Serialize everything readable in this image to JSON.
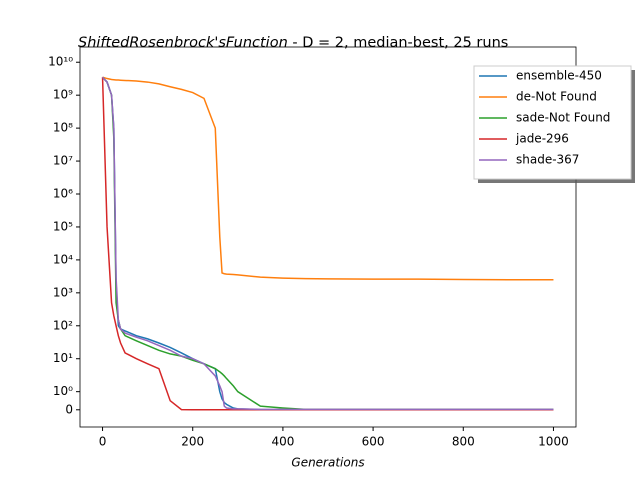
{
  "chart_data": {
    "type": "line",
    "title_math": "ShiftedRosenbrock'sFunction",
    "title": " - D = 2, median-best, 25 runs",
    "x_label": "Generations",
    "y_scale": "symlog",
    "x": [
      0,
      10,
      20,
      25,
      30,
      35,
      40,
      50,
      75,
      100,
      125,
      150,
      175,
      200,
      225,
      250,
      260,
      265,
      270,
      275,
      290,
      300,
      350,
      400,
      450,
      500,
      600,
      700,
      800,
      900,
      1000
    ],
    "series": [
      {
        "name": "ensemble-450",
        "color": "#1f77b4",
        "values": [
          3500000000,
          2500000000,
          1000000000,
          100000000,
          2000,
          100,
          80,
          70,
          50,
          40,
          30,
          22,
          15,
          10,
          7,
          5,
          1,
          0.6,
          0.4,
          0.3,
          0.1,
          0.05,
          0.01,
          0.005,
          0.002,
          0,
          0,
          0,
          0,
          0,
          0
        ]
      },
      {
        "name": "de-Not Found",
        "color": "#ff7f0e",
        "values": [
          3500000000,
          3200000000,
          3000000000,
          2950000000,
          2900000000,
          2880000000,
          2850000000,
          2800000000,
          2700000000,
          2500000000,
          2200000000,
          1800000000,
          1500000000,
          1200000000,
          800000000,
          100000000,
          50000,
          4000,
          3800,
          3700,
          3600,
          3500,
          3000,
          2800,
          2700,
          2650,
          2600,
          2600,
          2550,
          2500,
          2500
        ]
      },
      {
        "name": "sade-Not Found",
        "color": "#2ca02c",
        "values": [
          3500000000,
          2500000000,
          1000000000,
          50000000,
          500,
          150,
          80,
          50,
          35,
          25,
          18,
          14,
          12,
          9,
          7,
          5,
          4,
          3.5,
          3,
          2.5,
          1.5,
          1,
          0.2,
          0.1,
          0.02,
          0.02,
          0.02,
          0.02,
          0.02,
          0.02,
          0.02
        ]
      },
      {
        "name": "jade-296",
        "color": "#d62728",
        "values": [
          3500000000,
          100000,
          500,
          200,
          100,
          50,
          30,
          15,
          10,
          7,
          5,
          0.5,
          0.01,
          0,
          0,
          0,
          0,
          0,
          0,
          0,
          0,
          0,
          0,
          0,
          0,
          0,
          0,
          0,
          0,
          0,
          0
        ]
      },
      {
        "name": "shade-367",
        "color": "#9467bd",
        "values": [
          3500000000,
          2500000000,
          1000000000,
          100000000,
          3000,
          150,
          80,
          60,
          45,
          35,
          25,
          18,
          12,
          10,
          7,
          3,
          1.5,
          1,
          0.2,
          0.1,
          0.05,
          0.05,
          0.02,
          0.02,
          0.02,
          0.02,
          0.02,
          0.02,
          0.02,
          0.02,
          0.02
        ]
      }
    ],
    "xlim": [
      -50,
      1050
    ],
    "xticks": [
      0,
      200,
      400,
      600,
      800,
      1000
    ],
    "ylim": [
      -0.95,
      29000000000
    ],
    "yticks": [
      0,
      {
        "value": 1,
        "label": "10⁰"
      },
      {
        "value": 10,
        "label": "10¹"
      },
      {
        "value": 100,
        "label": "10²"
      },
      {
        "value": 1000,
        "label": "10³"
      },
      {
        "value": 10000,
        "label": "10⁴"
      },
      {
        "value": 100000,
        "label": "10⁵"
      },
      {
        "value": 1000000,
        "label": "10⁶"
      },
      {
        "value": 10000000,
        "label": "10⁷"
      },
      {
        "value": 100000000,
        "label": "10⁸"
      },
      {
        "value": 1000000000,
        "label": "10⁹"
      },
      {
        "value": 10000000000,
        "label": "10¹⁰"
      }
    ],
    "legend": "upper right"
  }
}
